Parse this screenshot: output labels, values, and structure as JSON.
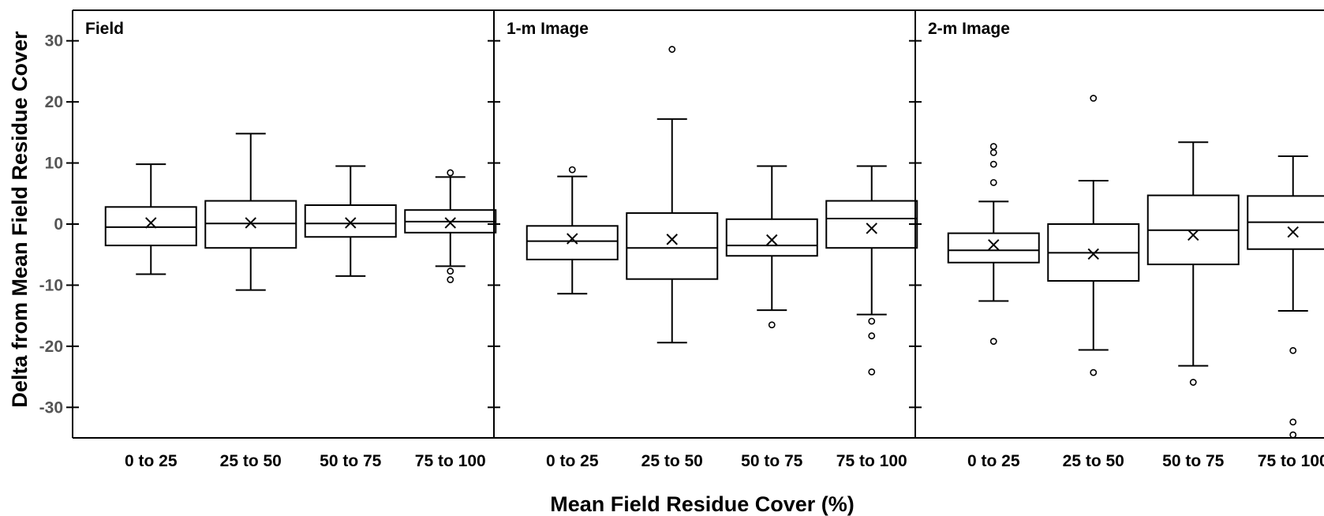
{
  "chart_data": {
    "type": "box",
    "ylabel": "Delta from Mean Field Residue Cover",
    "xlabel": "Mean Field Residue Cover (%)",
    "ylim": [
      -35,
      35
    ],
    "yticks": [
      30,
      20,
      10,
      0,
      -10,
      -20,
      -30
    ],
    "ytick_labels": [
      "30",
      "20",
      "10",
      "0",
      "-10",
      "-20",
      "-30"
    ],
    "categories": [
      "0 to 25",
      "25 to 50",
      "50 to 75",
      "75 to 100"
    ],
    "grid": false,
    "panels": [
      {
        "title": "Field",
        "boxes": [
          {
            "whisker_low": -8.2,
            "q1": -3.5,
            "median": -0.5,
            "q3": 2.8,
            "whisker_high": 9.8,
            "mean": 0.2,
            "outliers": []
          },
          {
            "whisker_low": -10.8,
            "q1": -3.9,
            "median": 0.1,
            "q3": 3.8,
            "whisker_high": 14.8,
            "mean": 0.2,
            "outliers": []
          },
          {
            "whisker_low": -8.5,
            "q1": -2.1,
            "median": 0.1,
            "q3": 3.1,
            "whisker_high": 9.5,
            "mean": 0.2,
            "outliers": []
          },
          {
            "whisker_low": -6.9,
            "q1": -1.4,
            "median": 0.4,
            "q3": 2.3,
            "whisker_high": 7.7,
            "mean": 0.2,
            "outliers": [
              8.4,
              -7.7,
              -9.1
            ]
          }
        ]
      },
      {
        "title": "1-m Image",
        "boxes": [
          {
            "whisker_low": -11.4,
            "q1": -5.8,
            "median": -2.8,
            "q3": -0.3,
            "whisker_high": 7.8,
            "mean": -2.4,
            "outliers": [
              8.9
            ]
          },
          {
            "whisker_low": -19.4,
            "q1": -9.0,
            "median": -3.9,
            "q3": 1.8,
            "whisker_high": 17.2,
            "mean": -2.5,
            "outliers": [
              28.6
            ]
          },
          {
            "whisker_low": -14.1,
            "q1": -5.2,
            "median": -3.5,
            "q3": 0.8,
            "whisker_high": 9.5,
            "mean": -2.6,
            "outliers": [
              -16.5
            ]
          },
          {
            "whisker_low": -14.8,
            "q1": -3.9,
            "median": 0.9,
            "q3": 3.8,
            "whisker_high": 9.5,
            "mean": -0.7,
            "outliers": [
              -15.9,
              -18.3,
              -24.2
            ]
          }
        ]
      },
      {
        "title": "2-m Image",
        "boxes": [
          {
            "whisker_low": -12.6,
            "q1": -6.3,
            "median": -4.3,
            "q3": -1.5,
            "whisker_high": 3.7,
            "mean": -3.4,
            "outliers": [
              12.7,
              11.7,
              9.8,
              6.8,
              -19.2
            ]
          },
          {
            "whisker_low": -20.6,
            "q1": -9.3,
            "median": -4.7,
            "q3": 0.0,
            "whisker_high": 7.1,
            "mean": -4.9,
            "outliers": [
              20.6,
              -24.3
            ]
          },
          {
            "whisker_low": -23.2,
            "q1": -6.6,
            "median": -1.0,
            "q3": 4.7,
            "whisker_high": 13.4,
            "mean": -1.8,
            "outliers": [
              -25.9
            ]
          },
          {
            "whisker_low": -14.2,
            "q1": -4.1,
            "median": 0.3,
            "q3": 4.6,
            "whisker_high": 11.1,
            "mean": -1.3,
            "outliers": [
              -20.7,
              -32.4,
              -34.5
            ]
          }
        ]
      }
    ]
  }
}
